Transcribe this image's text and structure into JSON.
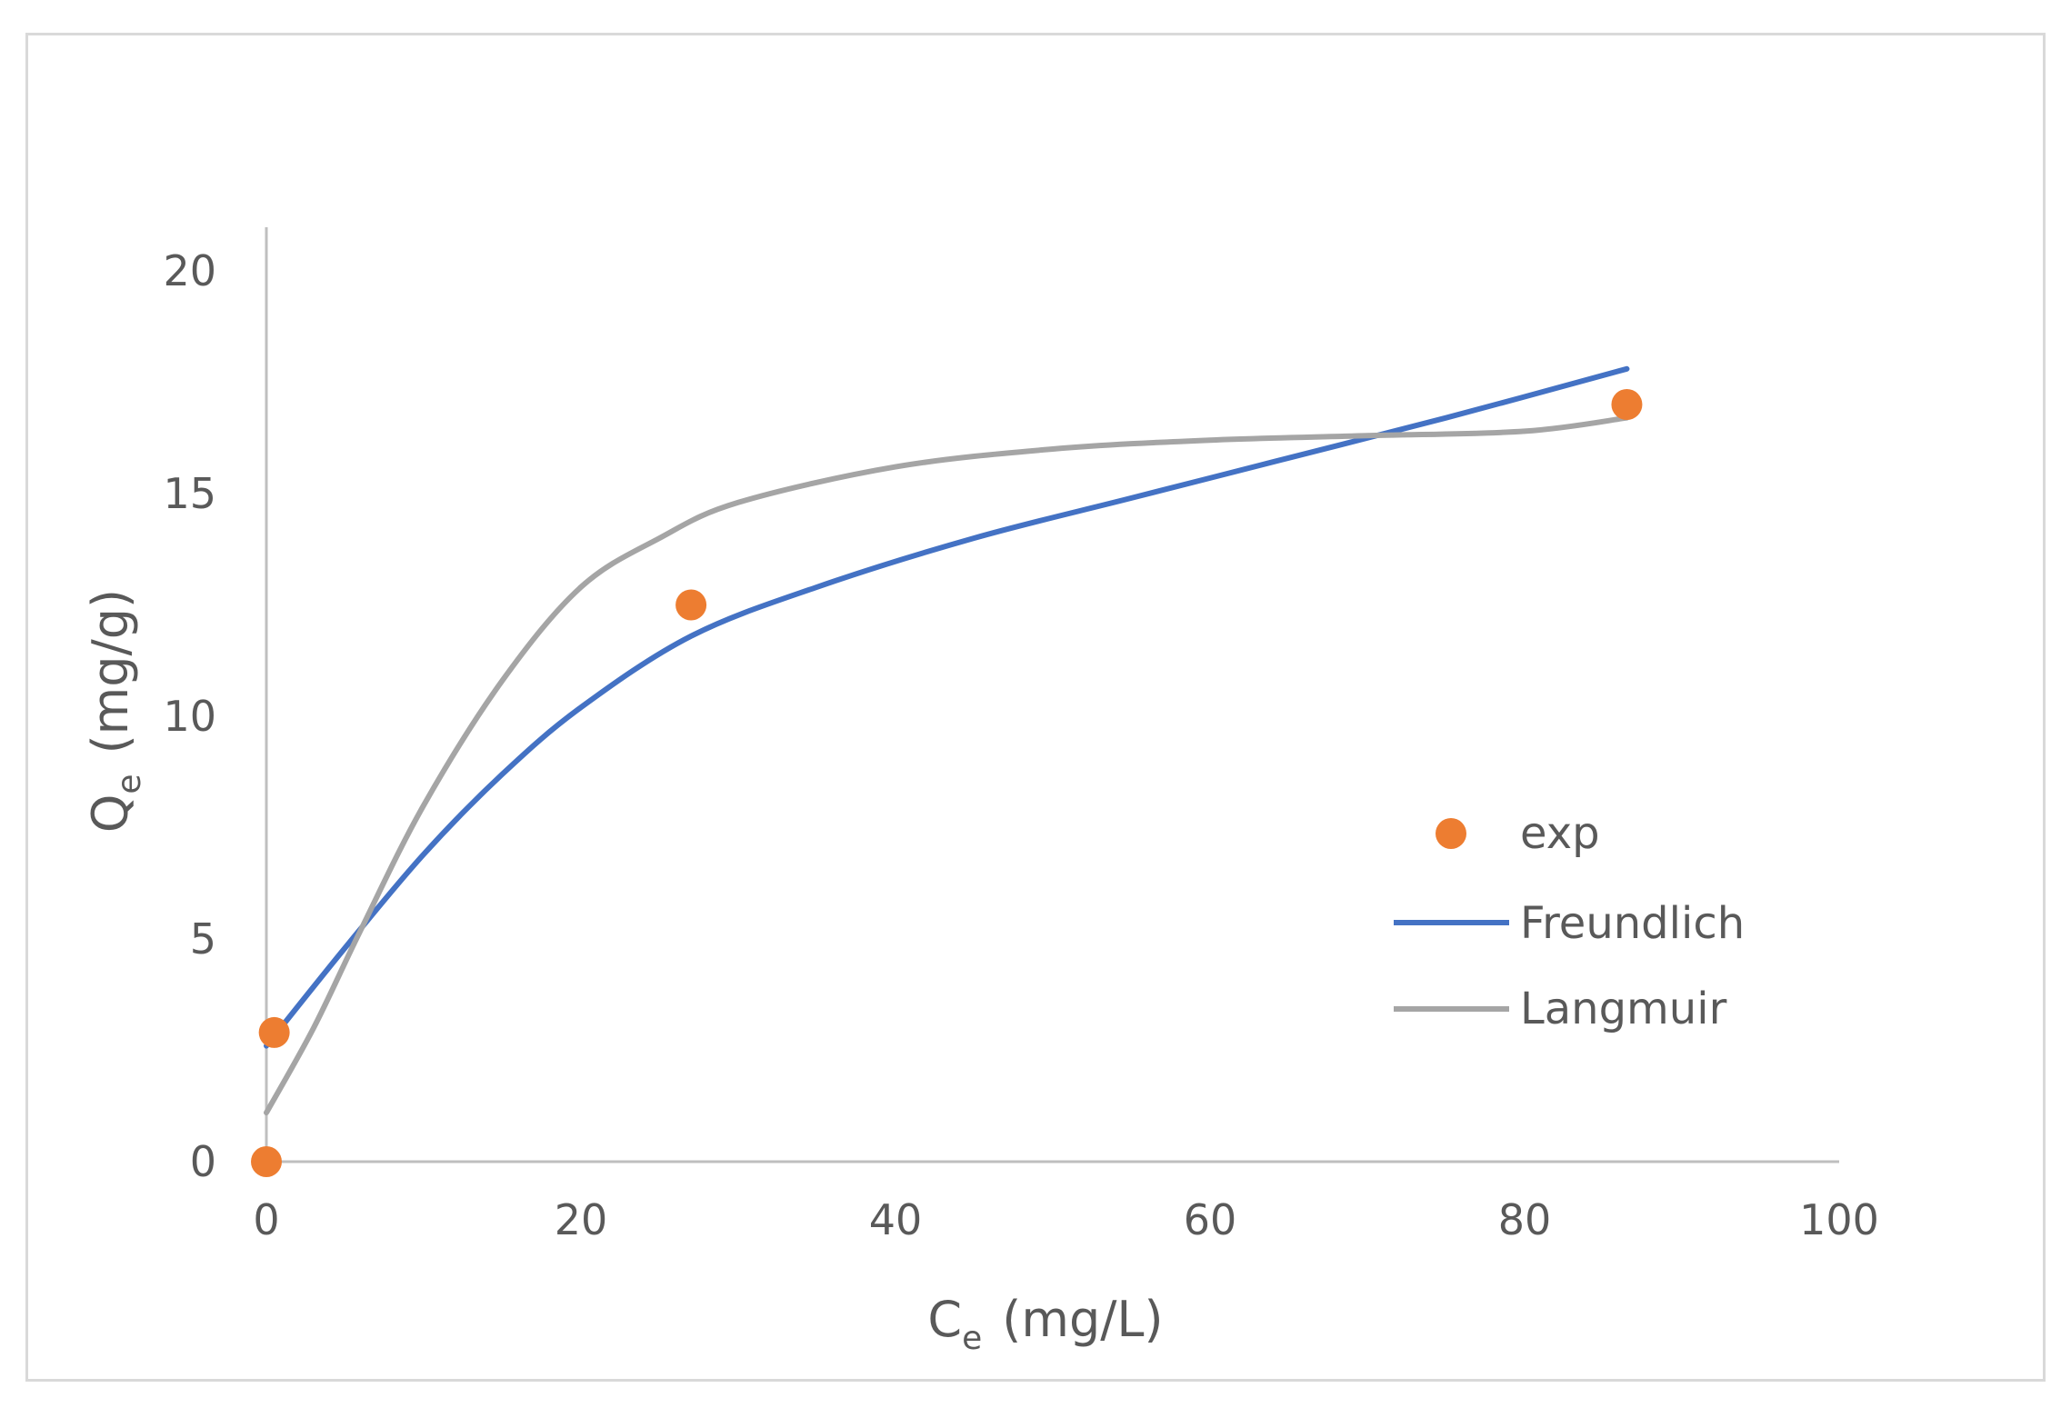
{
  "chart_data": {
    "type": "scatter",
    "title": "",
    "xlabel": {
      "main": "C",
      "sub": "e",
      "unit": "(mg/L)"
    },
    "ylabel": {
      "main": "Q",
      "sub": "e",
      "unit": "(mg/g)"
    },
    "xlim": [
      0,
      100
    ],
    "ylim": [
      0,
      20
    ],
    "xticks": [
      0,
      20,
      40,
      60,
      80,
      100
    ],
    "yticks": [
      0,
      5,
      10,
      15,
      20
    ],
    "grid": false,
    "legend_position": "right",
    "series": [
      {
        "name": "exp",
        "kind": "markers",
        "color": "#ED7D31",
        "x": [
          0,
          0.5,
          27,
          86.5
        ],
        "y": [
          0,
          2.9,
          12.5,
          17.0
        ]
      },
      {
        "name": "Freundlich",
        "kind": "line",
        "color": "#4472C4",
        "x": [
          0,
          5,
          10,
          15,
          20,
          27,
          35,
          45,
          55,
          65,
          75,
          86.5
        ],
        "y": [
          2.6,
          4.8,
          6.9,
          8.7,
          10.2,
          11.8,
          12.9,
          14.0,
          14.9,
          15.8,
          16.7,
          17.8
        ]
      },
      {
        "name": "Langmuir",
        "kind": "line",
        "color": "#A5A5A5",
        "x": [
          0,
          3,
          6,
          10,
          15,
          20,
          25,
          30,
          40,
          50,
          60,
          70,
          80,
          86.5
        ],
        "y": [
          1.1,
          3.0,
          5.2,
          8.0,
          10.8,
          12.9,
          14.0,
          14.8,
          15.6,
          16.0,
          16.2,
          16.3,
          16.4,
          16.7
        ]
      }
    ]
  }
}
